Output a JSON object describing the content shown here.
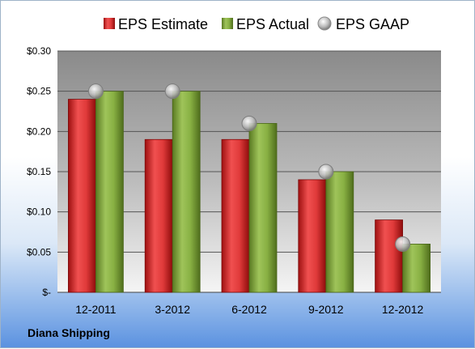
{
  "footer": {
    "company": "Diana Shipping"
  },
  "colors": {
    "estimate": "#d42828",
    "actual": "#7fa33a",
    "gaap": "#a8a8a8",
    "plot_bg_top": "#8c8c8c",
    "plot_bg_bottom": "#f4f4f4",
    "grid": "#555555"
  },
  "chart_data": {
    "type": "bar",
    "categories": [
      "12-2011",
      "3-2012",
      "6-2012",
      "9-2012",
      "12-2012"
    ],
    "series": [
      {
        "name": "EPS Estimate",
        "values": [
          0.24,
          0.19,
          0.19,
          0.14,
          0.09
        ]
      },
      {
        "name": "EPS Actual",
        "values": [
          0.25,
          0.25,
          0.21,
          0.15,
          0.06
        ]
      },
      {
        "name": "EPS GAAP",
        "values": [
          0.25,
          0.25,
          0.21,
          0.15,
          0.06
        ],
        "marker": "circle"
      }
    ],
    "y_ticks": [
      {
        "value": 0,
        "label": "$-"
      },
      {
        "value": 0.05,
        "label": "$0.05"
      },
      {
        "value": 0.1,
        "label": "$0.10"
      },
      {
        "value": 0.15,
        "label": "$0.15"
      },
      {
        "value": 0.2,
        "label": "$0.20"
      },
      {
        "value": 0.25,
        "label": "$0.25"
      },
      {
        "value": 0.3,
        "label": "$0.30"
      }
    ],
    "ylim": [
      0,
      0.3
    ],
    "grid": true,
    "legend_position": "top"
  }
}
